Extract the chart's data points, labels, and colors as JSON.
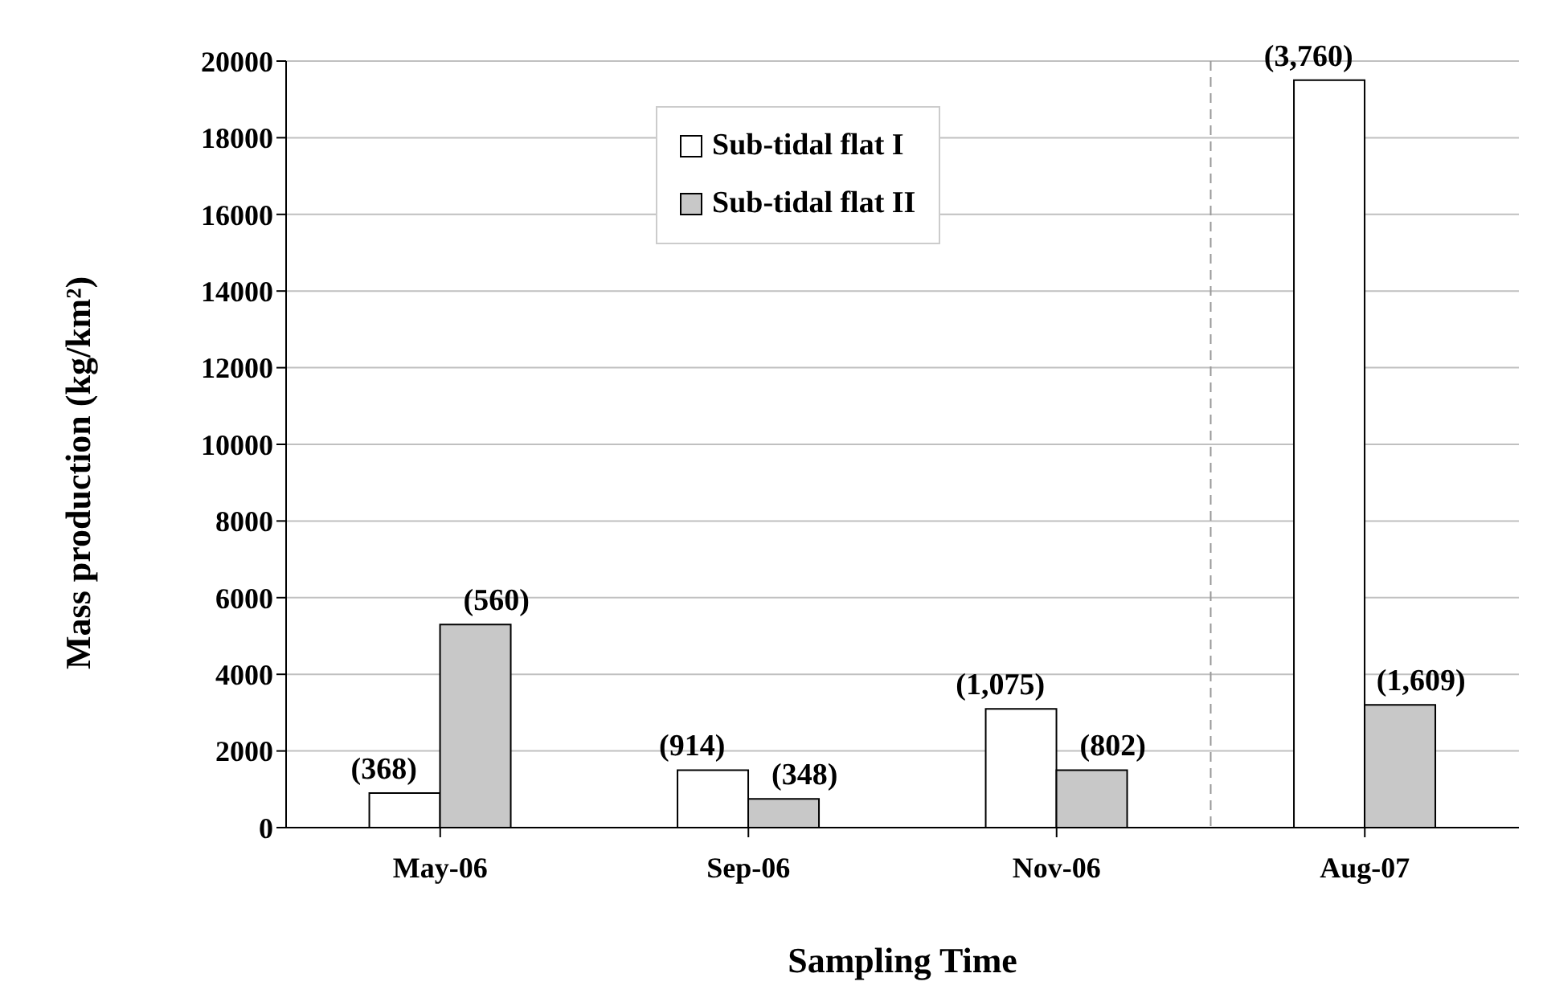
{
  "chart_data": {
    "type": "bar",
    "xlabel": "Sampling Time",
    "ylabel": "Mass production (kg/km²)",
    "categories": [
      "May-06",
      "Sep-06",
      "Nov-06",
      "Aug-07"
    ],
    "series": [
      {
        "name": "Sub-tidal flat I",
        "color": "#ffffff",
        "values": [
          900,
          1500,
          3100,
          19500
        ]
      },
      {
        "name": "Sub-tidal flat II",
        "color": "#c8c8c8",
        "values": [
          5300,
          750,
          1500,
          3200
        ]
      }
    ],
    "annotations": [
      {
        "text": "(368)",
        "x": "May-06",
        "y": 900
      },
      {
        "text": "(560)",
        "x": "May-06",
        "y": 5300
      },
      {
        "text": "(914)",
        "x": "Sep-06",
        "y": 1500
      },
      {
        "text": "(348)",
        "x": "Sep-06",
        "y": 750
      },
      {
        "text": "(1,075)",
        "x": "Nov-06",
        "y": 3100
      },
      {
        "text": "(802)",
        "x": "Nov-06",
        "y": 1500
      },
      {
        "text": "(3,760)",
        "x": "Aug-07",
        "y": 19500
      },
      {
        "text": "(1,609)",
        "x": "Aug-07",
        "y": 3200
      }
    ],
    "ylim": [
      0,
      20000
    ],
    "yticks": [
      0,
      2000,
      4000,
      6000,
      8000,
      10000,
      12000,
      14000,
      16000,
      18000,
      20000
    ],
    "grid": "y",
    "legend": "top",
    "ref_lines": [
      {
        "axis": "x",
        "value": "Aug-07",
        "color": "#999999",
        "line_style": "dashed"
      }
    ]
  }
}
